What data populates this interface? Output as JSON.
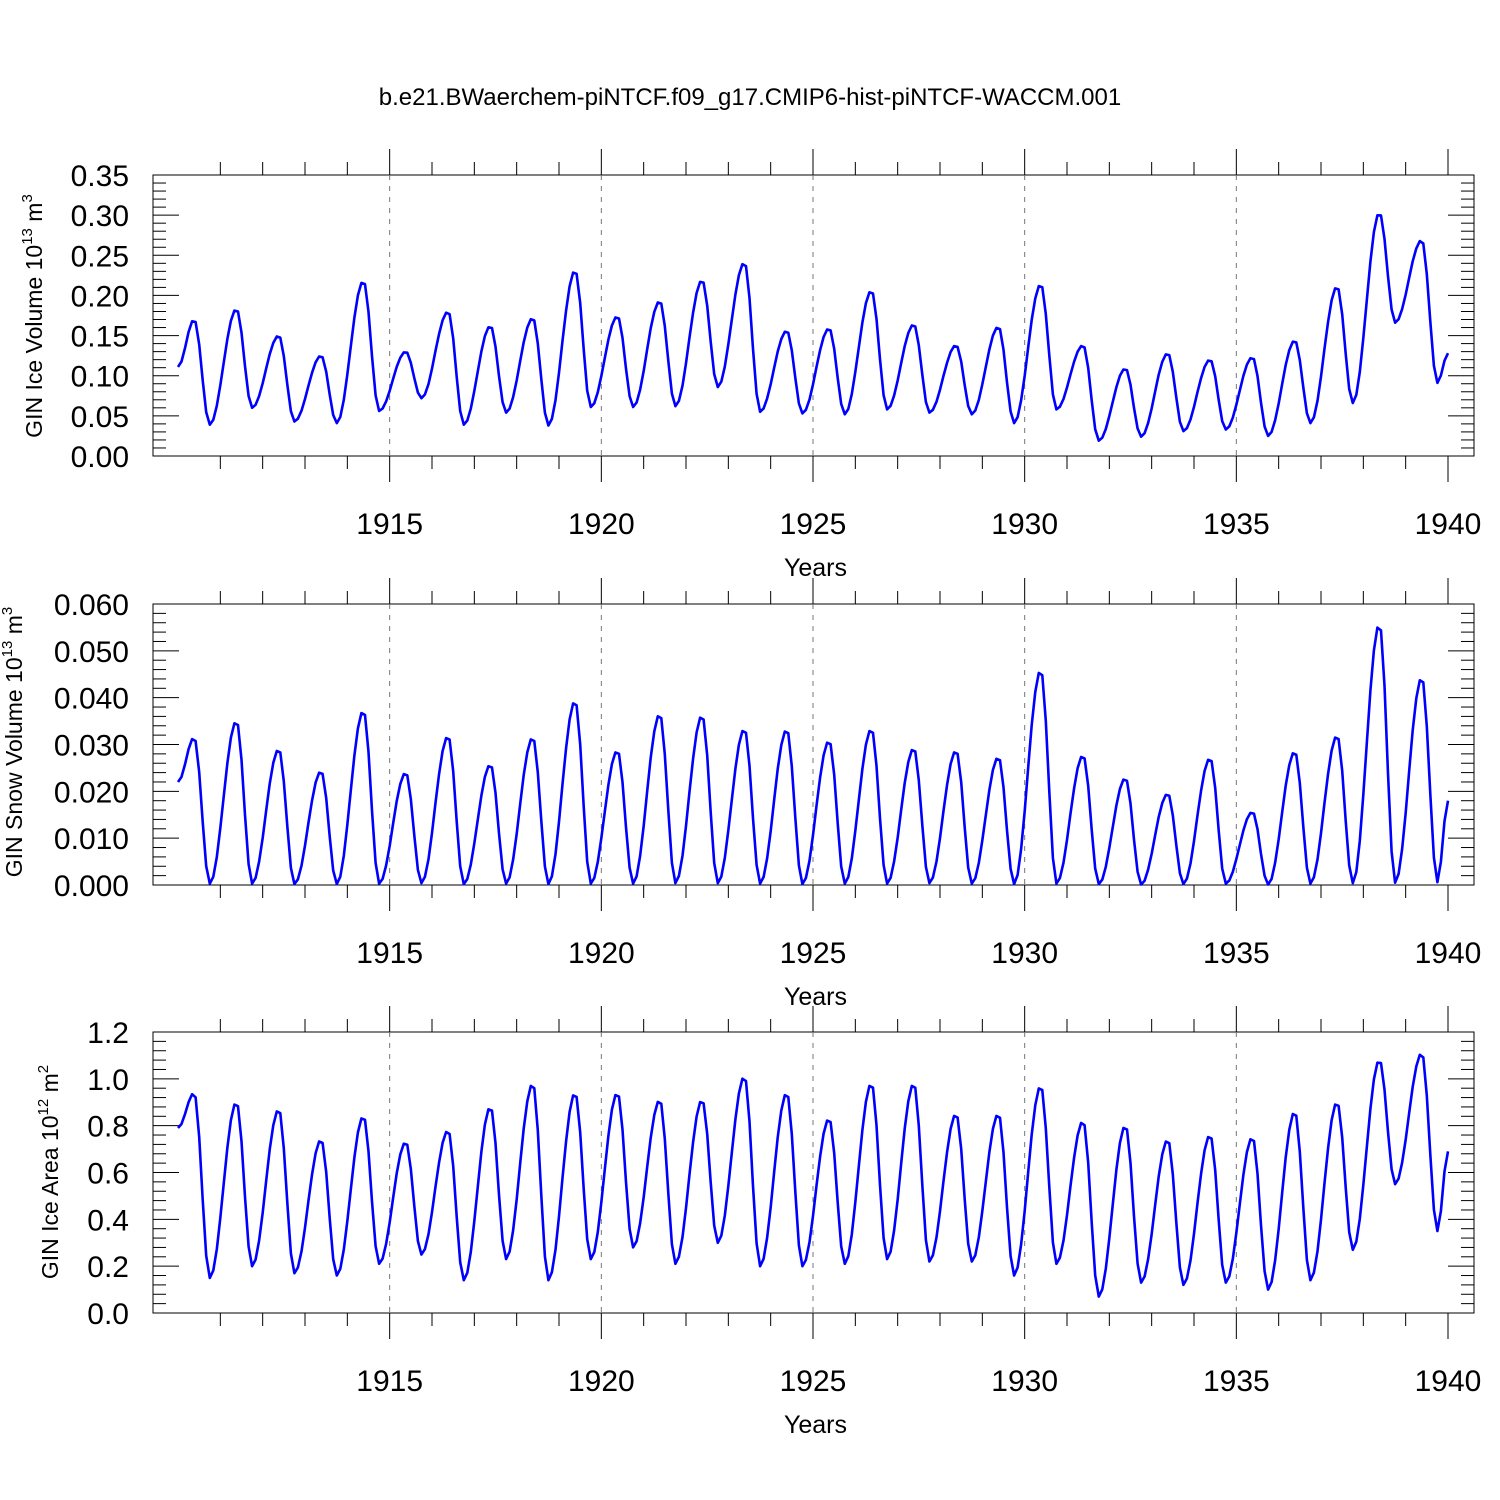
{
  "figure_title": "b.e21.BWaerchem-piNTCF.f09_g17.CMIP6-hist-piNTCF-WACCM.001",
  "series_color": "#0000ff",
  "chart_data": [
    {
      "type": "line",
      "title": "",
      "xlabel": "Years",
      "ylabel_main": "GIN Ice Volume 10",
      "ylabel_exp": "13",
      "ylabel_unit": " m",
      "ylabel_unit_exp": "3",
      "xlim": [
        1910,
        1940
      ],
      "ylim": [
        0.0,
        0.35
      ],
      "x_ticks": [
        "1915",
        "1920",
        "1925",
        "1930",
        "1935",
        "1940"
      ],
      "y_ticks": [
        "0.00",
        "0.05",
        "0.10",
        "0.15",
        "0.20",
        "0.25",
        "0.30",
        "0.35"
      ],
      "grid": "dashed vertical at major x ticks",
      "series": [
        {
          "name": "GIN Ice Volume",
          "peaks": [
            0.17,
            0.183,
            0.15,
            0.125,
            0.218,
            0.13,
            0.18,
            0.162,
            0.172,
            0.231,
            0.174,
            0.193,
            0.219,
            0.241,
            0.156,
            0.159,
            0.206,
            0.164,
            0.138,
            0.161,
            0.214,
            0.138,
            0.109,
            0.128,
            0.12,
            0.123,
            0.144,
            0.211,
            0.303,
            0.269
          ],
          "troughs": [
            0.039,
            0.06,
            0.043,
            0.041,
            0.056,
            0.072,
            0.039,
            0.054,
            0.038,
            0.061,
            0.061,
            0.062,
            0.086,
            0.055,
            0.053,
            0.052,
            0.058,
            0.054,
            0.052,
            0.041,
            0.058,
            0.019,
            0.024,
            0.031,
            0.033,
            0.025,
            0.041,
            0.066,
            0.166,
            0.091
          ],
          "start_value": 0.111,
          "end_value": 0.128
        }
      ]
    },
    {
      "type": "line",
      "title": "",
      "xlabel": "Years",
      "ylabel_main": "GIN Snow Volume 10",
      "ylabel_exp": "13",
      "ylabel_unit": " m",
      "ylabel_unit_exp": "3",
      "xlim": [
        1910,
        1940
      ],
      "ylim": [
        0.0,
        0.06
      ],
      "x_ticks": [
        "1915",
        "1920",
        "1925",
        "1930",
        "1935",
        "1940"
      ],
      "y_ticks": [
        "0.000",
        "0.010",
        "0.020",
        "0.030",
        "0.040",
        "0.050",
        "0.060"
      ],
      "grid": "dashed vertical at major x ticks",
      "series": [
        {
          "name": "GIN Snow Volume",
          "peaks": [
            0.0315,
            0.035,
            0.029,
            0.0243,
            0.0372,
            0.024,
            0.0318,
            0.0257,
            0.0315,
            0.0393,
            0.0287,
            0.0365,
            0.0362,
            0.0333,
            0.0332,
            0.0308,
            0.0333,
            0.0292,
            0.0287,
            0.0273,
            0.0459,
            0.0277,
            0.0228,
            0.0195,
            0.0271,
            0.0156,
            0.0285,
            0.0319,
            0.0557,
            0.0443
          ],
          "troughs": [
            0.0003,
            0.0003,
            0.0002,
            0.0002,
            0.0003,
            0.0004,
            0.0002,
            0.0003,
            0.0002,
            0.0003,
            0.0003,
            0.0004,
            0.0004,
            0.0003,
            0.0002,
            0.0003,
            0.0003,
            0.0004,
            0.0003,
            0.0002,
            0.0003,
            0.0002,
            0.0001,
            0.0002,
            0.0003,
            0.0001,
            0.0003,
            0.0004,
            0.0005,
            0.0006
          ],
          "start_value": 0.022,
          "end_value": 0.018
        }
      ]
    },
    {
      "type": "line",
      "title": "",
      "xlabel": "Years",
      "ylabel_main": "GIN Ice Area 10",
      "ylabel_exp": "12",
      "ylabel_unit": " m",
      "ylabel_unit_exp": "2",
      "xlim": [
        1910,
        1940
      ],
      "ylim": [
        0.0,
        1.2
      ],
      "x_ticks": [
        "1915",
        "1920",
        "1925",
        "1930",
        "1935",
        "1940"
      ],
      "y_ticks": [
        "0.0",
        "0.2",
        "0.4",
        "0.6",
        "0.8",
        "1.0",
        "1.2"
      ],
      "grid": "dashed vertical at major x ticks",
      "series": [
        {
          "name": "GIN Ice Area",
          "peaks": [
            0.94,
            0.9,
            0.87,
            0.74,
            0.84,
            0.73,
            0.78,
            0.88,
            0.98,
            0.94,
            0.94,
            0.91,
            0.91,
            1.01,
            0.94,
            0.83,
            0.98,
            0.98,
            0.85,
            0.85,
            0.97,
            0.82,
            0.8,
            0.74,
            0.76,
            0.75,
            0.86,
            0.9,
            1.08,
            1.11
          ],
          "troughs": [
            0.15,
            0.2,
            0.17,
            0.16,
            0.21,
            0.25,
            0.14,
            0.23,
            0.14,
            0.23,
            0.28,
            0.21,
            0.3,
            0.2,
            0.2,
            0.21,
            0.23,
            0.22,
            0.22,
            0.16,
            0.21,
            0.07,
            0.13,
            0.12,
            0.13,
            0.1,
            0.14,
            0.27,
            0.55,
            0.35
          ],
          "start_value": 0.79,
          "end_value": 0.69
        }
      ]
    }
  ]
}
